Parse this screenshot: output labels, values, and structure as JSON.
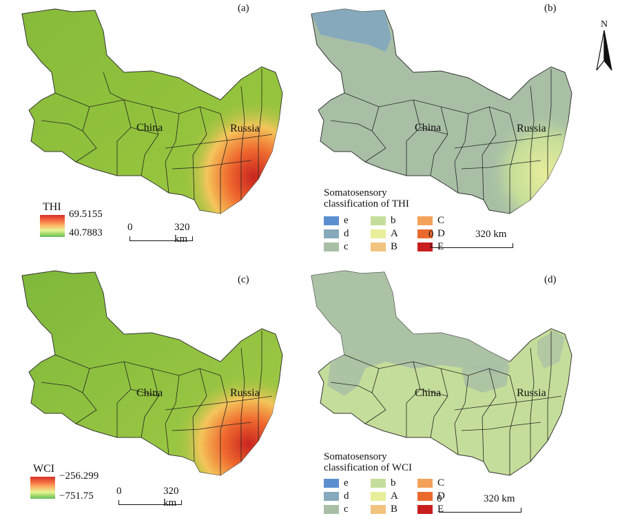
{
  "panels": [
    {
      "id": "a",
      "label": "(a)"
    },
    {
      "id": "b",
      "label": "(b)"
    },
    {
      "id": "c",
      "label": "(c)"
    },
    {
      "id": "d",
      "label": "(d)"
    }
  ],
  "countries": {
    "china": "China",
    "russia": "Russia"
  },
  "thi_legend": {
    "title": "THI",
    "max": "69.5155",
    "min": "40.7883"
  },
  "wci_legend": {
    "title": "WCI",
    "max": "−256.299",
    "min": "−751.75"
  },
  "scalebar": {
    "start": "0",
    "end": "320 km"
  },
  "classification": {
    "thi_title_line1": "Somatosensory",
    "thi_title_line2": "classification of THI",
    "wci_title_line1": "Somatosensory",
    "wci_title_line2": "classification of WCI",
    "classes": [
      {
        "label": "e",
        "color": "#5b8fd0"
      },
      {
        "label": "b",
        "color": "#c5dd9a"
      },
      {
        "label": "C",
        "color": "#f4a15a"
      },
      {
        "label": "d",
        "color": "#86a9bc"
      },
      {
        "label": "A",
        "color": "#e9ee9a"
      },
      {
        "label": "D",
        "color": "#ea6a2e"
      },
      {
        "label": "c",
        "color": "#a8bfa6"
      },
      {
        "label": "B",
        "color": "#f2c37e"
      },
      {
        "label": "E",
        "color": "#c81e1e"
      }
    ]
  },
  "north_arrow": {
    "label": "N"
  }
}
